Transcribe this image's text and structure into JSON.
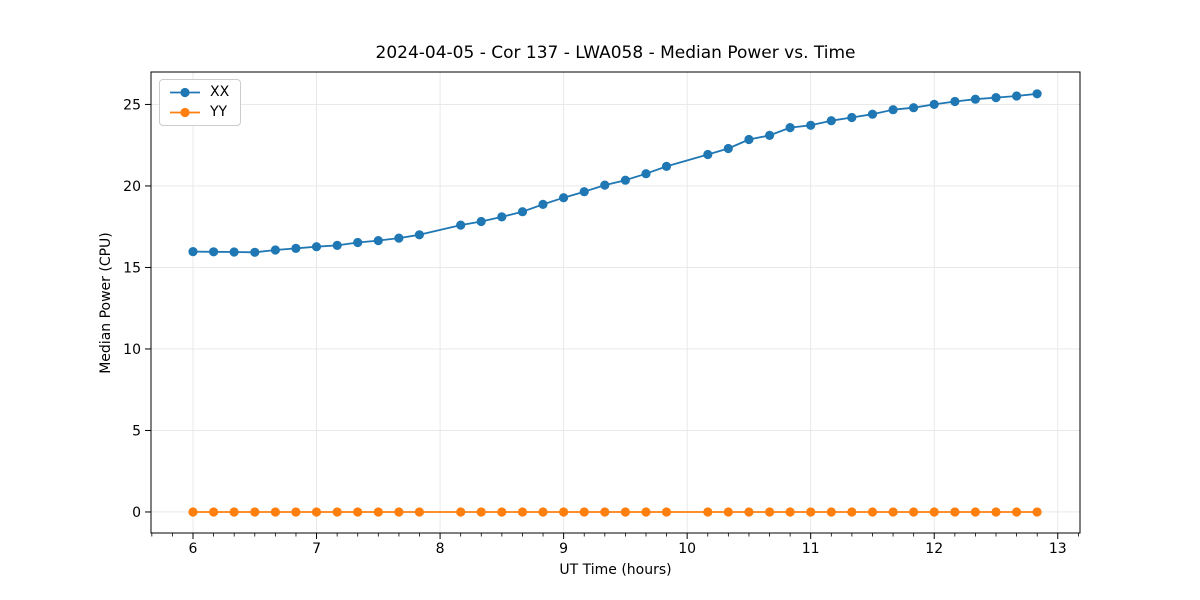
{
  "chart_data": {
    "type": "line",
    "title": "2024-04-05 - Cor 137 - LWA058 - Median Power vs. Time",
    "xlabel": "UT Time (hours)",
    "ylabel": "Median Power (CPU)",
    "xlim": [
      5.66,
      13.18
    ],
    "ylim": [
      -1.29,
      26.99
    ],
    "xticks": [
      6,
      7,
      8,
      9,
      10,
      11,
      12,
      13
    ],
    "yticks": [
      0,
      5,
      10,
      15,
      20,
      25
    ],
    "x_minor_tick_step": 0.16667,
    "grid": true,
    "legend_position": "upper left",
    "colors": {
      "xx": "#1f77b4",
      "yy": "#ff7f0e",
      "grid": "#e6e6e6",
      "spine": "#000000"
    },
    "x": [
      6.0,
      6.167,
      6.333,
      6.5,
      6.667,
      6.833,
      7.0,
      7.167,
      7.333,
      7.5,
      7.667,
      7.833,
      8.167,
      8.333,
      8.5,
      8.667,
      8.833,
      9.0,
      9.167,
      9.333,
      9.5,
      9.667,
      9.833,
      10.167,
      10.333,
      10.5,
      10.667,
      10.833,
      11.0,
      11.167,
      11.333,
      11.5,
      11.667,
      11.833,
      12.0,
      12.167,
      12.333,
      12.5,
      12.667,
      12.833
    ],
    "series": [
      {
        "name": "XX",
        "color": "#1f77b4",
        "values": [
          15.97,
          15.96,
          15.95,
          15.93,
          16.07,
          16.17,
          16.27,
          16.35,
          16.53,
          16.65,
          16.8,
          17.0,
          17.6,
          17.82,
          18.1,
          18.42,
          18.87,
          19.28,
          19.65,
          20.05,
          20.35,
          20.75,
          21.2,
          21.93,
          22.3,
          22.85,
          23.1,
          23.58,
          23.72,
          24.0,
          24.2,
          24.4,
          24.68,
          24.8,
          25.0,
          25.18,
          25.32,
          25.42,
          25.52,
          25.65
        ]
      },
      {
        "name": "YY",
        "color": "#ff7f0e",
        "values": [
          0.0,
          0.0,
          0.0,
          0.0,
          0.0,
          0.0,
          0.0,
          0.0,
          0.0,
          0.0,
          0.0,
          0.0,
          0.0,
          0.0,
          0.0,
          0.0,
          0.0,
          0.0,
          0.0,
          0.0,
          0.0,
          0.0,
          0.0,
          0.0,
          0.0,
          0.0,
          0.0,
          0.0,
          0.0,
          0.0,
          0.0,
          0.0,
          0.0,
          0.0,
          0.0,
          0.0,
          0.0,
          0.0,
          0.0,
          0.0
        ]
      }
    ]
  }
}
